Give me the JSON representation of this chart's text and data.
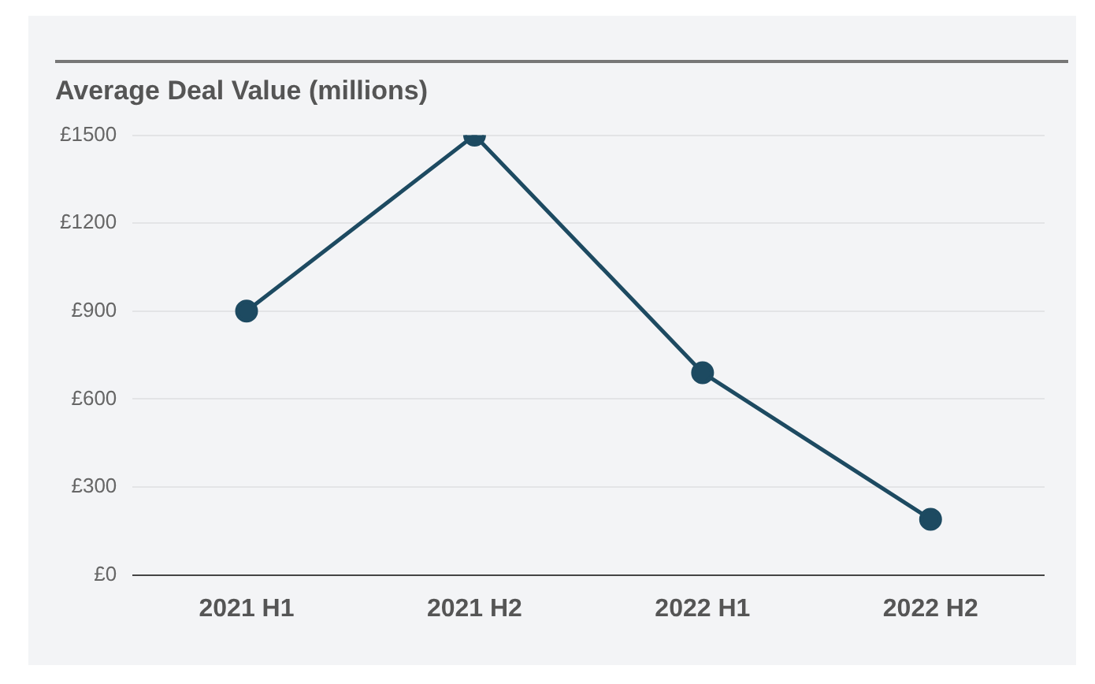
{
  "chart_data": {
    "type": "line",
    "title": "Average Deal Value (millions)",
    "categories": [
      "2021 H1",
      "2021 H2",
      "2022 H1",
      "2022 H2"
    ],
    "series": [
      {
        "color": "#1d4a61",
        "values": [
          900,
          1500,
          690,
          190
        ]
      }
    ],
    "ylim": [
      0,
      1500
    ],
    "yticks": [
      {
        "value": 0,
        "label": "£0"
      },
      {
        "value": 300,
        "label": "£300"
      },
      {
        "value": 600,
        "label": "£600"
      },
      {
        "value": 900,
        "label": "£900"
      },
      {
        "value": 1200,
        "label": "£1200"
      },
      {
        "value": 1500,
        "label": "£1500"
      }
    ],
    "grid": "y",
    "marker": "circle",
    "line_style": "solid"
  }
}
